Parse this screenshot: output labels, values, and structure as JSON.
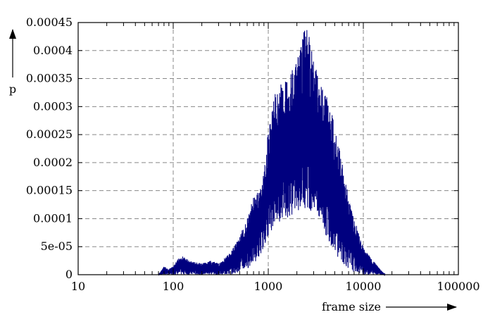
{
  "chart_data": {
    "type": "line",
    "title": "",
    "xlabel": "frame size",
    "ylabel": "p",
    "xscale": "log",
    "xlim": [
      10,
      100000
    ],
    "ylim": [
      0,
      0.00045
    ],
    "grid": true,
    "legend": "none",
    "line_color": "#00007f",
    "grid_color": "#888888",
    "xticks": [
      {
        "value": 10,
        "label": "10"
      },
      {
        "value": 100,
        "label": "100"
      },
      {
        "value": 1000,
        "label": "1000"
      },
      {
        "value": 10000,
        "label": "10000"
      },
      {
        "value": 100000,
        "label": "100000"
      }
    ],
    "yticks": [
      {
        "value": 0,
        "label": "0"
      },
      {
        "value": 5e-05,
        "label": "5e-05"
      },
      {
        "value": 0.0001,
        "label": "0.0001"
      },
      {
        "value": 0.00015,
        "label": "0.00015"
      },
      {
        "value": 0.0002,
        "label": "0.0002"
      },
      {
        "value": 0.00025,
        "label": "0.00025"
      },
      {
        "value": 0.0003,
        "label": "0.0003"
      },
      {
        "value": 0.00035,
        "label": "0.00035"
      },
      {
        "value": 0.0004,
        "label": "0.0004"
      },
      {
        "value": 0.00045,
        "label": "0.00045"
      }
    ],
    "series": [
      {
        "x": [
          70,
          80,
          90,
          100,
          120,
          150,
          200,
          250,
          300,
          400,
          500,
          600,
          700,
          800,
          900,
          1000,
          1200,
          1500,
          2000,
          2500,
          3000,
          3500,
          4000,
          5000,
          6000,
          7000,
          8000,
          10000,
          12000,
          15000,
          17000
        ],
        "y_high": [
          0,
          1.5e-05,
          1e-05,
          1.5e-05,
          3.5e-05,
          2.5e-05,
          2e-05,
          2.5e-05,
          2e-05,
          4e-05,
          7e-05,
          0.0001,
          0.00014,
          0.00015,
          0.00018,
          0.00026,
          0.00033,
          0.00035,
          0.00038,
          0.00045,
          0.00039,
          0.00035,
          0.00033,
          0.00027,
          0.0002,
          0.00014,
          0.0001,
          5e-05,
          3e-05,
          1e-05,
          0
        ],
        "y_low": [
          0,
          0,
          0,
          0,
          0,
          0,
          0,
          0,
          0,
          0,
          5e-06,
          1e-05,
          2e-05,
          3e-05,
          5e-05,
          7e-05,
          9e-05,
          0.0001,
          0.00011,
          0.00012,
          0.00011,
          9e-05,
          7e-05,
          4e-05,
          2e-05,
          1e-05,
          5e-06,
          0,
          0,
          0,
          0
        ]
      }
    ]
  }
}
